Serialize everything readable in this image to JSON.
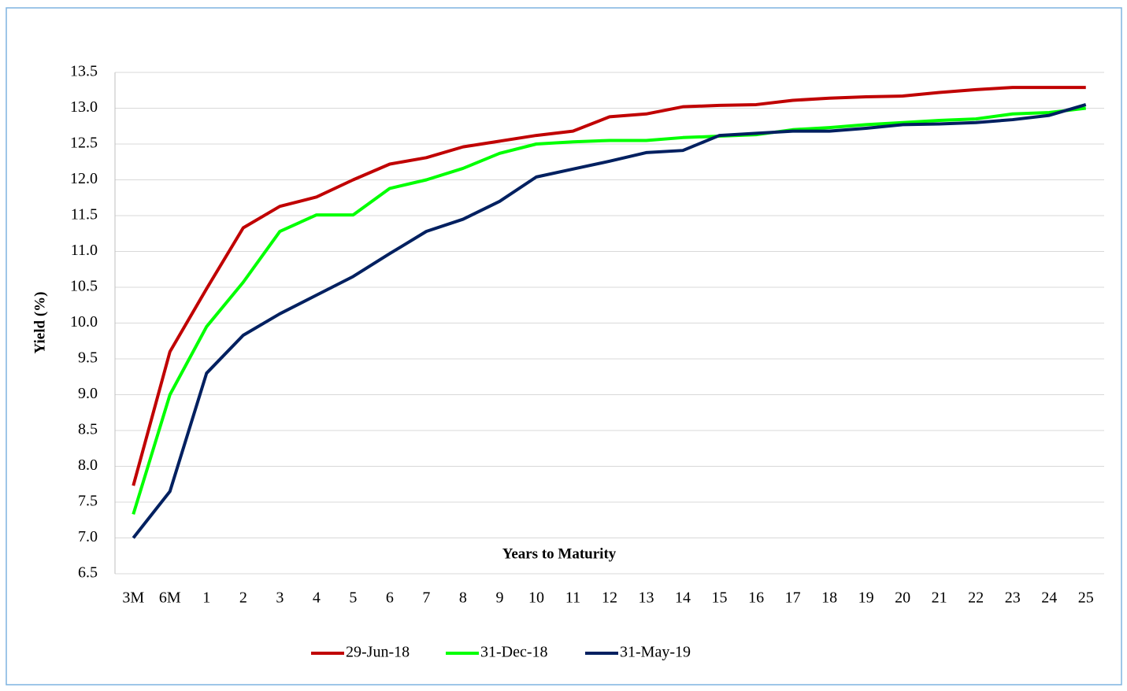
{
  "chart_data": {
    "type": "line",
    "x_label": "Years to Maturity",
    "y_label": "Yield (%)",
    "categories": [
      "3M",
      "6M",
      "1",
      "2",
      "3",
      "4",
      "5",
      "6",
      "7",
      "8",
      "9",
      "10",
      "11",
      "12",
      "13",
      "14",
      "15",
      "16",
      "17",
      "18",
      "19",
      "20",
      "21",
      "22",
      "23",
      "24",
      "25"
    ],
    "series": [
      {
        "name": "29-Jun-18",
        "color": "#c00000",
        "values": [
          7.73,
          9.6,
          10.48,
          11.33,
          11.63,
          11.76,
          12.0,
          12.22,
          12.31,
          12.46,
          12.54,
          12.62,
          12.68,
          12.88,
          12.92,
          13.02,
          13.04,
          13.05,
          13.11,
          13.14,
          13.16,
          13.17,
          13.22,
          13.26,
          13.29,
          13.29,
          13.29
        ]
      },
      {
        "name": "31-Dec-18",
        "color": "#00ff00",
        "values": [
          7.33,
          9.0,
          9.95,
          10.57,
          11.28,
          11.51,
          11.51,
          11.88,
          12.0,
          12.16,
          12.37,
          12.5,
          12.53,
          12.55,
          12.55,
          12.59,
          12.61,
          12.63,
          12.7,
          12.73,
          12.77,
          12.8,
          12.83,
          12.85,
          12.92,
          12.94,
          13.0
        ]
      },
      {
        "name": "31-May-19",
        "color": "#002060",
        "values": [
          7.0,
          7.65,
          9.3,
          9.83,
          10.13,
          10.39,
          10.65,
          10.97,
          11.28,
          11.45,
          11.7,
          12.04,
          12.15,
          12.26,
          12.38,
          12.41,
          12.62,
          12.65,
          12.68,
          12.68,
          12.72,
          12.77,
          12.78,
          12.8,
          12.84,
          12.9,
          13.05
        ]
      }
    ],
    "ylim": [
      6.5,
      13.5
    ],
    "yticks": [
      6.5,
      {
        "value": 7,
        "label": "7.0"
      },
      7.5,
      {
        "value": 8,
        "label": "8.0"
      },
      8.5,
      {
        "value": 9,
        "label": "9.0"
      },
      9.5,
      {
        "value": 10,
        "label": "10.0"
      },
      10.5,
      {
        "value": 11,
        "label": "11.0"
      },
      11.5,
      {
        "value": 12,
        "label": "12.0"
      },
      12.5,
      {
        "value": 13,
        "label": "13.0"
      },
      13.5
    ],
    "grid": true,
    "legend": "bottom"
  }
}
